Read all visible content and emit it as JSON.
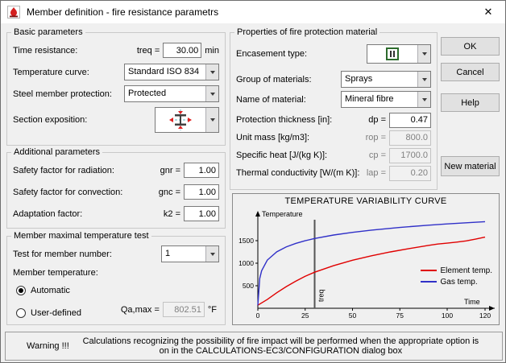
{
  "window": {
    "title": "Member definition  - fire resistance parametrs",
    "close_label": "✕"
  },
  "buttons": {
    "ok": "OK",
    "cancel": "Cancel",
    "help": "Help",
    "new_material": "New material"
  },
  "basic": {
    "legend": "Basic parameters",
    "time_resistance": {
      "label": "Time resistance:",
      "symbol": "treq =",
      "value": "30.00",
      "unit": "min"
    },
    "temperature_curve": {
      "label": "Temperature curve:",
      "value": "Standard ISO 834"
    },
    "steel_protection": {
      "label": "Steel member protection:",
      "value": "Protected"
    },
    "section_exposition": {
      "label": "Section exposition:"
    }
  },
  "additional": {
    "legend": "Additional parameters",
    "radiation": {
      "label": "Safety factor for radiation:",
      "symbol": "gnr =",
      "value": "1.00"
    },
    "convection": {
      "label": "Safety factor for convection:",
      "symbol": "gnc =",
      "value": "1.00"
    },
    "adaptation": {
      "label": "Adaptation factor:",
      "symbol": "k2 =",
      "value": "1.00"
    }
  },
  "member_test": {
    "legend": "Member maximal temperature test",
    "member_number": {
      "label": "Test for member number:",
      "value": "1"
    },
    "member_temperature_label": "Member temperature:",
    "automatic_label": "Automatic",
    "user_defined_label": "User-defined",
    "qamax": {
      "symbol": "Qa,max =",
      "value": "802.51",
      "unit": "°F"
    }
  },
  "protection": {
    "legend": "Properties of fire protection material",
    "encasement_label": "Encasement type:",
    "group_label": "Group of materials:",
    "group_value": "Sprays",
    "name_label": "Name of material:",
    "name_value": "Mineral fibre",
    "thickness": {
      "label": "Protection thickness [in]:",
      "symbol": "dp =",
      "value": "0.47"
    },
    "unit_mass": {
      "label": "Unit mass [kg/m3]:",
      "symbol": "rop =",
      "value": "800.0"
    },
    "specific_heat": {
      "label": "Specific heat  [J/(kg K)]:",
      "symbol": "cp =",
      "value": "1700.0"
    },
    "conductivity": {
      "label": "Thermal conductivity  [W/(m K)]:",
      "symbol": "lap =",
      "value": "0.20"
    }
  },
  "warning": {
    "prefix": "Warning !!!",
    "text": "Calculations recognizing the possibility of fire impact will be performed when the appropriate option is on in the CALCULATIONS-EC3/CONFIGURATION dialog box"
  },
  "chart_data": {
    "type": "line",
    "title": "TEMPERATURE VARIABILITY CURVE",
    "xlabel": "Time",
    "ylabel": "Temperature",
    "xlim": [
      0,
      120
    ],
    "ylim": [
      0,
      2000
    ],
    "x_ticks": [
      0,
      25,
      50,
      75,
      100,
      120
    ],
    "y_ticks": [
      500,
      1000,
      1500
    ],
    "grid": "off",
    "legend_position": "right",
    "treq_line_x": 30,
    "treq_label": "treq",
    "series": [
      {
        "name": "Element temp.",
        "color": "#e00000",
        "x": [
          0,
          5,
          10,
          15,
          20,
          25,
          30,
          40,
          50,
          60,
          70,
          80,
          90,
          95,
          100,
          105,
          110,
          115,
          120
        ],
        "values": [
          68,
          195,
          345,
          480,
          600,
          710,
          800,
          945,
          1065,
          1165,
          1250,
          1325,
          1395,
          1425,
          1445,
          1468,
          1495,
          1535,
          1580
        ]
      },
      {
        "name": "Gas temp.",
        "color": "#3030c8",
        "x": [
          0,
          1,
          2,
          5,
          10,
          15,
          20,
          25,
          30,
          40,
          50,
          60,
          75,
          90,
          100,
          110,
          120
        ],
        "values": [
          68,
          660,
          832,
          1069,
          1253,
          1362,
          1438,
          1499,
          1547,
          1625,
          1685,
          1733,
          1794,
          1843,
          1872,
          1897,
          1921
        ]
      }
    ]
  }
}
